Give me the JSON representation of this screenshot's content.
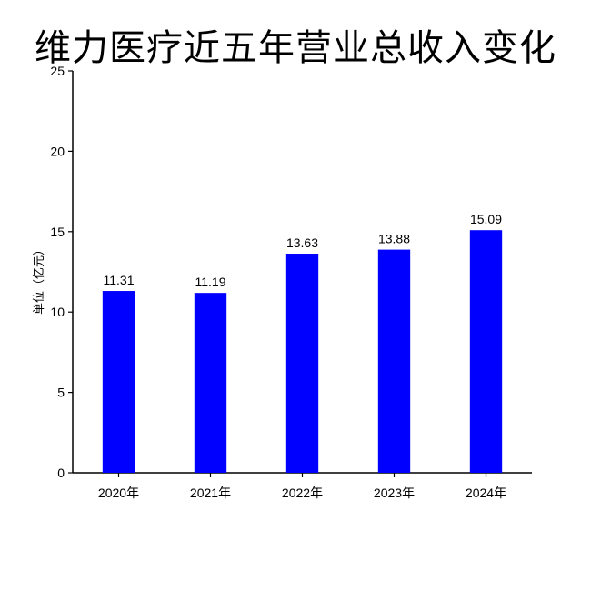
{
  "chart_data": {
    "type": "bar",
    "title": "维力医疗近五年营业总收入变化",
    "xlabel": "",
    "ylabel": "单位（亿元）",
    "categories": [
      "2020年",
      "2021年",
      "2022年",
      "2023年",
      "2024年"
    ],
    "values": [
      11.31,
      11.19,
      13.63,
      13.88,
      15.09
    ],
    "data_labels": [
      "11.31",
      "11.19",
      "13.63",
      "13.88",
      "15.09"
    ],
    "ylim": [
      0,
      25
    ],
    "yticks": [
      "0",
      "5",
      "10",
      "15",
      "20",
      "25"
    ],
    "bar_color": "#0000ff",
    "grid": false,
    "legend": "none"
  }
}
